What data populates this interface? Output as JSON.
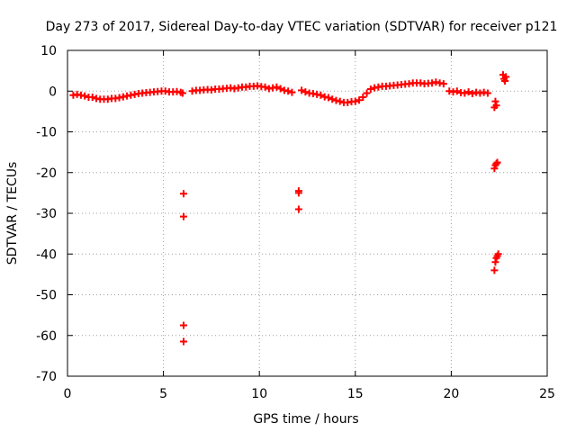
{
  "chart_data": {
    "type": "scatter",
    "title": "Day 273 of 2017, Sidereal Day-to-day VTEC variation (SDTVAR) for receiver p121",
    "xlabel": "GPS time / hours",
    "ylabel": "SDTVAR / TECUs",
    "xlim": [
      0,
      25
    ],
    "ylim": [
      -70,
      10
    ],
    "xticks": [
      0,
      5,
      10,
      15,
      20,
      25
    ],
    "yticks": [
      -70,
      -60,
      -50,
      -40,
      -30,
      -20,
      -10,
      0,
      10
    ],
    "grid": true,
    "marker": "+",
    "colors": {
      "series": "#ff0000",
      "grid": "#a0a0a0",
      "axis": "#000000"
    },
    "series": [
      {
        "name": "SDTVAR",
        "x": [
          0.3,
          0.5,
          0.7,
          0.9,
          1.1,
          1.3,
          1.5,
          1.7,
          1.9,
          2.1,
          2.3,
          2.5,
          2.7,
          2.9,
          3.1,
          3.3,
          3.5,
          3.7,
          3.9,
          4.1,
          4.3,
          4.5,
          4.7,
          4.9,
          5.1,
          5.3,
          5.5,
          5.7,
          5.9,
          6.0,
          6.05,
          6.05,
          6.05,
          6.05,
          6.5,
          6.7,
          6.9,
          7.1,
          7.3,
          7.5,
          7.7,
          7.9,
          8.1,
          8.3,
          8.5,
          8.7,
          8.9,
          9.1,
          9.3,
          9.5,
          9.7,
          9.9,
          10.1,
          10.3,
          10.5,
          10.7,
          10.9,
          11.1,
          11.3,
          11.5,
          11.7,
          12.05,
          12.05,
          12.05,
          12.2,
          12.4,
          12.6,
          12.8,
          13.0,
          13.2,
          13.4,
          13.6,
          13.8,
          14.0,
          14.2,
          14.4,
          14.6,
          14.8,
          15.0,
          15.2,
          15.4,
          15.6,
          15.8,
          16.0,
          16.2,
          16.4,
          16.6,
          16.8,
          17.0,
          17.2,
          17.4,
          17.6,
          17.8,
          18.0,
          18.2,
          18.4,
          18.6,
          18.8,
          19.0,
          19.2,
          19.4,
          19.6,
          19.9,
          20.1,
          20.3,
          20.5,
          20.7,
          20.9,
          21.1,
          21.3,
          21.5,
          21.7,
          21.9,
          22.25,
          22.3,
          22.35,
          22.25,
          22.3,
          22.35,
          22.4,
          22.25,
          22.3,
          22.35,
          22.4,
          22.45,
          22.7,
          22.75,
          22.8,
          22.85
        ],
        "y": [
          -1.0,
          -0.8,
          -1.0,
          -1.2,
          -1.5,
          -1.5,
          -1.8,
          -2.0,
          -2.0,
          -2.0,
          -1.8,
          -1.8,
          -1.6,
          -1.4,
          -1.2,
          -1.0,
          -0.8,
          -0.6,
          -0.5,
          -0.4,
          -0.3,
          -0.2,
          -0.1,
          0.0,
          0.0,
          -0.2,
          -0.2,
          -0.1,
          -0.3,
          -0.5,
          -25.2,
          -30.8,
          -57.5,
          -61.5,
          0.0,
          0.2,
          0.2,
          0.3,
          0.4,
          0.3,
          0.5,
          0.5,
          0.6,
          0.7,
          0.8,
          0.6,
          0.8,
          1.0,
          1.0,
          1.2,
          1.2,
          1.3,
          1.1,
          1.0,
          0.6,
          0.8,
          1.0,
          0.6,
          0.2,
          0.0,
          -0.3,
          -24.5,
          -25.0,
          -29.0,
          0.2,
          -0.2,
          -0.5,
          -0.6,
          -0.8,
          -1.0,
          -1.4,
          -1.6,
          -2.0,
          -2.3,
          -2.5,
          -2.8,
          -2.8,
          -2.6,
          -2.5,
          -2.2,
          -1.5,
          -0.5,
          0.5,
          0.8,
          1.0,
          1.2,
          1.2,
          1.3,
          1.4,
          1.5,
          1.6,
          1.7,
          1.8,
          2.0,
          2.0,
          2.0,
          1.8,
          1.9,
          2.0,
          2.2,
          2.0,
          1.8,
          0.0,
          -0.2,
          0.0,
          -0.4,
          -0.5,
          -0.2,
          -0.6,
          -0.3,
          -0.5,
          -0.3,
          -0.5,
          -4.0,
          -2.5,
          -3.5,
          -19.0,
          -18.2,
          -17.8,
          -17.5,
          -44.0,
          -42.0,
          -41.0,
          -40.5,
          -40.0,
          4.0,
          3.0,
          2.5,
          3.5
        ]
      }
    ]
  }
}
